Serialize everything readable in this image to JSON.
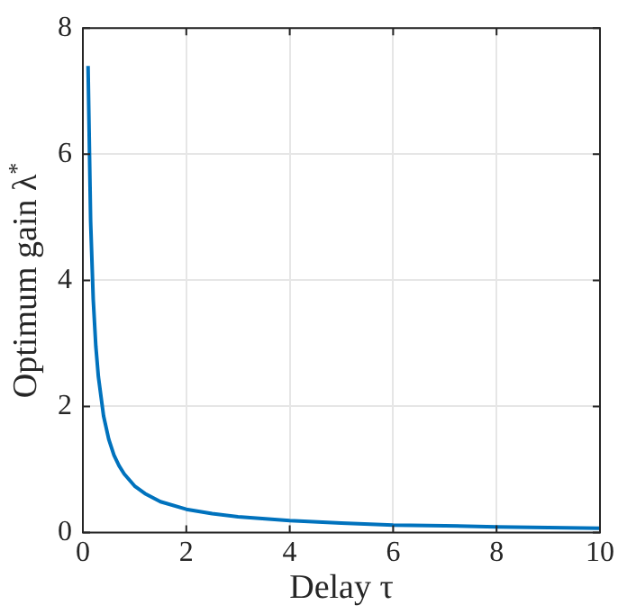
{
  "chart_data": {
    "type": "line",
    "xlabel": "Delay τ",
    "ylabel": "Optimum gain λ$^{*}$",
    "series": [
      {
        "color": "#0072bd",
        "x": [
          0.1,
          0.15,
          0.2,
          0.25,
          0.3,
          0.4,
          0.5,
          0.6,
          0.7,
          0.8,
          1,
          1.2,
          1.5,
          2,
          2.5,
          3,
          4,
          5,
          6,
          7,
          8,
          9,
          10
        ],
        "values": [
          7.4,
          4.93,
          3.7,
          2.96,
          2.47,
          1.85,
          1.48,
          1.23,
          1.06,
          0.93,
          0.74,
          0.62,
          0.49,
          0.37,
          0.3,
          0.25,
          0.19,
          0.15,
          0.12,
          0.11,
          0.09,
          0.08,
          0.07
        ]
      }
    ],
    "xlim": [
      0,
      10
    ],
    "xticks": [
      0,
      2,
      4,
      6,
      8,
      10
    ],
    "ylim": [
      0,
      8
    ],
    "yticks": [
      0,
      2,
      4,
      6,
      8
    ],
    "grid": true,
    "marker": "none",
    "line_style": "solid"
  }
}
